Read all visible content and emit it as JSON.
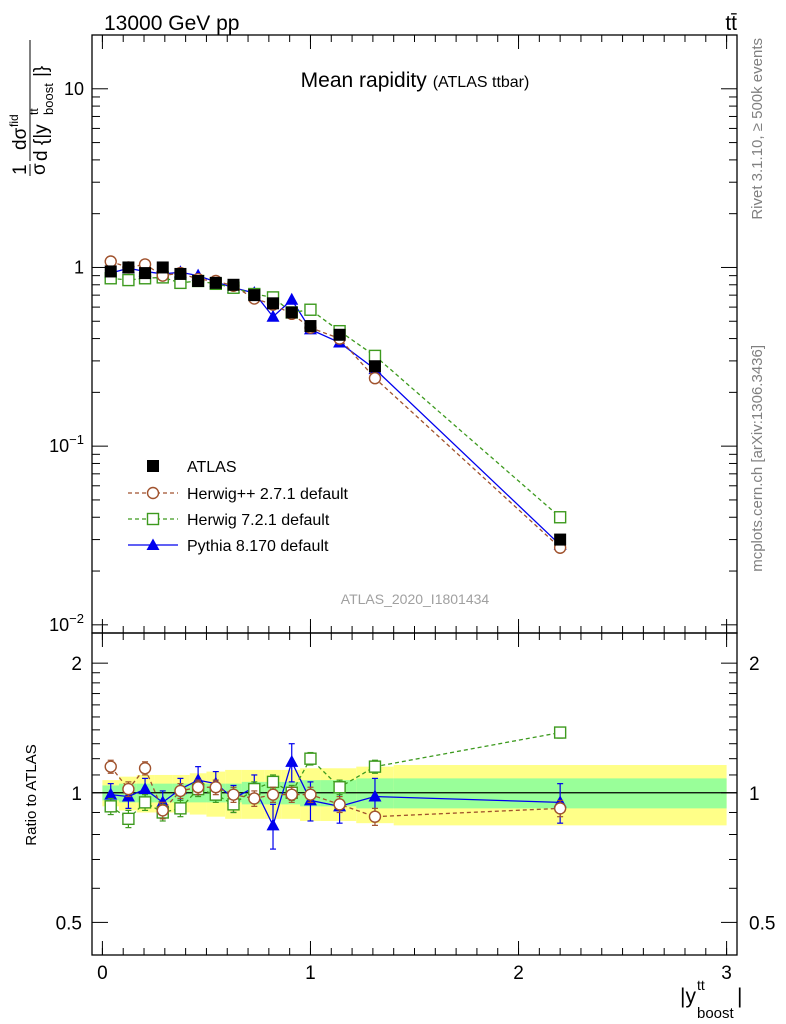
{
  "header": {
    "energy_label": "13000 GeV pp",
    "process_label": "tt̄"
  },
  "side_labels": {
    "rivet": "Rivet 3.1.10, ≥ 500k events",
    "mcplots": "mcplots.cern.ch [arXiv:1306.3436]"
  },
  "chart_data": [
    {
      "type": "line",
      "panel": "main",
      "title": "Mean rapidity",
      "title_note": "(ATLAS ttbar)",
      "watermark": "ATLAS_2020_I1801434",
      "ylabel": "1/σ dσ/d{|y_boost^tt|}",
      "y_scale": "log",
      "xlim": [
        -0.05,
        3.05
      ],
      "ylim": [
        0.009,
        20
      ],
      "yticks": [
        {
          "value": 0.01,
          "label": "10−2"
        },
        {
          "value": 0.1,
          "label": "10−1"
        },
        {
          "value": 1,
          "label": "1"
        },
        {
          "value": 10,
          "label": "10"
        }
      ],
      "legend_position": "lower-left",
      "x": [
        0.04,
        0.125,
        0.205,
        0.29,
        0.375,
        0.46,
        0.545,
        0.63,
        0.73,
        0.82,
        0.91,
        1.0,
        1.14,
        1.31,
        2.2
      ],
      "series": [
        {
          "name": "ATLAS",
          "style": "data",
          "color": "#000000",
          "values": [
            0.95,
            1.0,
            0.93,
            1.0,
            0.92,
            0.84,
            0.82,
            0.8,
            0.7,
            0.63,
            0.56,
            0.47,
            0.42,
            0.28,
            0.03
          ]
        },
        {
          "name": "Herwig++ 2.7.1 default",
          "style": "dashed-circle",
          "color": "#a0522d",
          "values": [
            1.08,
            1.0,
            1.04,
            0.9,
            0.93,
            0.86,
            0.84,
            0.79,
            0.67,
            0.62,
            0.55,
            0.46,
            0.4,
            0.24,
            0.027
          ]
        },
        {
          "name": "Herwig 7.2.1 default",
          "style": "dashed-square",
          "color": "#3d9a1e",
          "values": [
            0.87,
            0.85,
            0.87,
            0.88,
            0.82,
            0.84,
            0.81,
            0.77,
            0.71,
            0.68,
            0.56,
            0.58,
            0.44,
            0.32,
            0.04
          ]
        },
        {
          "name": "Pythia 8.170 default",
          "style": "solid-triangle",
          "color": "#0000ee",
          "values": [
            0.93,
            0.99,
            0.95,
            0.92,
            0.94,
            0.9,
            0.83,
            0.77,
            0.72,
            0.53,
            0.66,
            0.45,
            0.38,
            0.27,
            0.028
          ]
        }
      ]
    },
    {
      "type": "line",
      "panel": "ratio",
      "ylabel": "Ratio to ATLAS",
      "xlabel": "|y_boost^tt|",
      "y_scale": "log",
      "xlim": [
        -0.05,
        3.05
      ],
      "ylim": [
        0.42,
        2.35
      ],
      "yticks": [
        {
          "value": 0.5,
          "label": "0.5"
        },
        {
          "value": 1,
          "label": "1"
        },
        {
          "value": 2,
          "label": "2"
        }
      ],
      "xticks": [
        {
          "value": 0,
          "label": "0"
        },
        {
          "value": 1,
          "label": "1"
        },
        {
          "value": 2,
          "label": "2"
        },
        {
          "value": 3,
          "label": "3"
        }
      ],
      "x": [
        0.04,
        0.125,
        0.205,
        0.29,
        0.375,
        0.46,
        0.545,
        0.63,
        0.73,
        0.82,
        0.91,
        1.0,
        1.14,
        1.31,
        2.2
      ],
      "bands": {
        "edges": [
          0.0,
          0.08,
          0.165,
          0.25,
          0.335,
          0.42,
          0.5,
          0.59,
          0.67,
          0.78,
          0.86,
          0.95,
          1.05,
          1.22,
          1.4,
          3.0
        ],
        "inner_color": "#99ff99",
        "outer_color": "#ffff88",
        "inner": [
          [
            0.96,
            1.04
          ],
          [
            0.95,
            1.05
          ],
          [
            0.95,
            1.05
          ],
          [
            0.95,
            1.05
          ],
          [
            0.95,
            1.05
          ],
          [
            0.95,
            1.05
          ],
          [
            0.95,
            1.05
          ],
          [
            0.95,
            1.05
          ],
          [
            0.94,
            1.06
          ],
          [
            0.94,
            1.06
          ],
          [
            0.94,
            1.06
          ],
          [
            0.93,
            1.07
          ],
          [
            0.93,
            1.07
          ],
          [
            0.92,
            1.08
          ],
          [
            0.92,
            1.08
          ]
        ],
        "outer": [
          [
            0.93,
            1.07
          ],
          [
            0.91,
            1.09
          ],
          [
            0.9,
            1.1
          ],
          [
            0.9,
            1.1
          ],
          [
            0.9,
            1.1
          ],
          [
            0.89,
            1.11
          ],
          [
            0.88,
            1.12
          ],
          [
            0.87,
            1.13
          ],
          [
            0.87,
            1.13
          ],
          [
            0.87,
            1.13
          ],
          [
            0.87,
            1.13
          ],
          [
            0.86,
            1.14
          ],
          [
            0.86,
            1.14
          ],
          [
            0.85,
            1.15
          ],
          [
            0.84,
            1.16
          ]
        ]
      },
      "series": [
        {
          "name": "Herwig++ 2.7.1 default",
          "style": "dashed-circle",
          "color": "#a0522d",
          "values": [
            1.15,
            1.02,
            1.14,
            0.91,
            1.01,
            1.03,
            1.03,
            0.99,
            0.97,
            0.99,
            0.99,
            0.99,
            0.94,
            0.88,
            0.92
          ],
          "errors": [
            0.04,
            0.04,
            0.04,
            0.04,
            0.04,
            0.04,
            0.04,
            0.04,
            0.04,
            0.04,
            0.04,
            0.04,
            0.04,
            0.04,
            0.04
          ]
        },
        {
          "name": "Herwig 7.2.1 default",
          "style": "dashed-square",
          "color": "#3d9a1e",
          "values": [
            0.93,
            0.87,
            0.95,
            0.9,
            0.92,
            1.02,
            0.99,
            0.94,
            1.02,
            1.06,
            1.0,
            1.2,
            1.03,
            1.15,
            1.38
          ],
          "errors": [
            0.04,
            0.04,
            0.04,
            0.04,
            0.04,
            0.04,
            0.04,
            0.04,
            0.04,
            0.04,
            0.04,
            0.04,
            0.04,
            0.04,
            0.04
          ]
        },
        {
          "name": "Pythia 8.170 default",
          "style": "solid-triangle",
          "color": "#0000ee",
          "values": [
            0.99,
            0.98,
            1.02,
            0.95,
            1.02,
            1.07,
            1.05,
            0.97,
            1.03,
            0.84,
            1.18,
            0.96,
            0.93,
            0.98,
            0.95
          ],
          "errors": [
            0.06,
            0.06,
            0.06,
            0.06,
            0.06,
            0.08,
            0.07,
            0.07,
            0.07,
            0.1,
            0.12,
            0.1,
            0.08,
            0.1,
            0.1
          ]
        }
      ]
    }
  ]
}
